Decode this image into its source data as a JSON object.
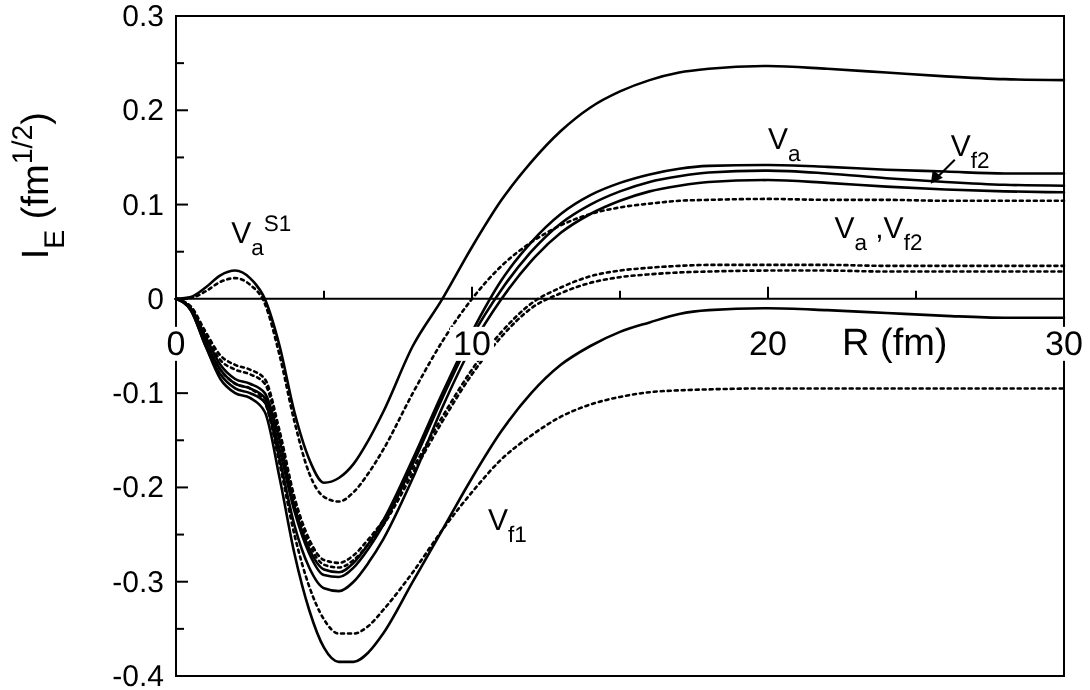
{
  "chart_data": {
    "type": "line",
    "xlabel": "R (fm)",
    "ylabel": "I$_{E}$ (fm$^{1/2}$)",
    "x": [
      0,
      0.5,
      1,
      1.5,
      2,
      2.5,
      3,
      3.5,
      4,
      4.5,
      5,
      5.5,
      6,
      6.5,
      7,
      8,
      9,
      10,
      11,
      12,
      13,
      14,
      15,
      16,
      17,
      18,
      20,
      22,
      24,
      26,
      28,
      30
    ],
    "series": [
      {
        "color": "#000000",
        "line_style": "solid",
        "values": [
          0,
          0.002,
          0.012,
          0.025,
          0.03,
          0.022,
          0,
          -0.05,
          -0.12,
          -0.17,
          -0.195,
          -0.19,
          -0.175,
          -0.15,
          -0.12,
          -0.05,
          0,
          0.055,
          0.105,
          0.145,
          0.178,
          0.203,
          0.22,
          0.232,
          0.24,
          0.244,
          0.247,
          0.244,
          0.24,
          0.236,
          0.233,
          0.232
        ]
      },
      {
        "color": "#000000",
        "line_style": "dotted",
        "values": [
          0,
          0.001,
          0.008,
          0.018,
          0.022,
          0.015,
          -0.005,
          -0.06,
          -0.13,
          -0.185,
          -0.21,
          -0.215,
          -0.205,
          -0.185,
          -0.16,
          -0.1,
          -0.045,
          0,
          0.035,
          0.06,
          0.078,
          0.09,
          0.097,
          0.101,
          0.104,
          0.105,
          0.106,
          0.105,
          0.105,
          0.104,
          0.104,
          0.104
        ]
      },
      {
        "color": "#000000",
        "line_style": "solid",
        "values": [
          0,
          -0.01,
          -0.04,
          -0.07,
          -0.085,
          -0.09,
          -0.1,
          -0.15,
          -0.22,
          -0.265,
          -0.287,
          -0.29,
          -0.28,
          -0.26,
          -0.235,
          -0.17,
          -0.1,
          -0.035,
          0.02,
          0.06,
          0.09,
          0.11,
          0.123,
          0.132,
          0.138,
          0.141,
          0.142,
          0.14,
          0.137,
          0.135,
          0.133,
          0.133
        ]
      },
      {
        "color": "#000000",
        "line_style": "solid",
        "values": [
          0,
          -0.01,
          -0.045,
          -0.075,
          -0.09,
          -0.095,
          -0.105,
          -0.16,
          -0.225,
          -0.27,
          -0.293,
          -0.295,
          -0.285,
          -0.265,
          -0.24,
          -0.175,
          -0.105,
          -0.04,
          0.01,
          0.05,
          0.08,
          0.1,
          0.114,
          0.124,
          0.13,
          0.134,
          0.136,
          0.133,
          0.128,
          0.124,
          0.121,
          0.12
        ]
      },
      {
        "color": "#000000",
        "line_style": "solid",
        "values": [
          0,
          -0.012,
          -0.05,
          -0.08,
          -0.095,
          -0.1,
          -0.11,
          -0.17,
          -0.24,
          -0.285,
          -0.307,
          -0.31,
          -0.3,
          -0.28,
          -0.255,
          -0.19,
          -0.115,
          -0.05,
          0,
          0.04,
          0.07,
          0.09,
          0.104,
          0.114,
          0.12,
          0.124,
          0.126,
          0.123,
          0.119,
          0.116,
          0.114,
          0.113
        ]
      },
      {
        "color": "#000000",
        "line_style": "dotted",
        "values": [
          0,
          -0.008,
          -0.035,
          -0.06,
          -0.07,
          -0.075,
          -0.085,
          -0.14,
          -0.21,
          -0.255,
          -0.277,
          -0.28,
          -0.272,
          -0.255,
          -0.235,
          -0.18,
          -0.125,
          -0.075,
          -0.035,
          -0.005,
          0.012,
          0.024,
          0.03,
          0.033,
          0.035,
          0.036,
          0.036,
          0.036,
          0.035,
          0.035,
          0.035,
          0.035
        ]
      },
      {
        "color": "#000000",
        "line_style": "dotted",
        "values": [
          0,
          -0.009,
          -0.038,
          -0.065,
          -0.075,
          -0.08,
          -0.09,
          -0.145,
          -0.215,
          -0.26,
          -0.282,
          -0.285,
          -0.277,
          -0.26,
          -0.24,
          -0.185,
          -0.13,
          -0.08,
          -0.04,
          -0.01,
          0.006,
          0.017,
          0.023,
          0.026,
          0.028,
          0.029,
          0.03,
          0.03,
          0.029,
          0.029,
          0.029,
          0.029
        ]
      },
      {
        "color": "#000000",
        "line_style": "solid",
        "values": [
          0,
          -0.012,
          -0.05,
          -0.085,
          -0.1,
          -0.105,
          -0.12,
          -0.19,
          -0.27,
          -0.33,
          -0.37,
          -0.385,
          -0.385,
          -0.375,
          -0.355,
          -0.3,
          -0.245,
          -0.19,
          -0.14,
          -0.1,
          -0.07,
          -0.05,
          -0.035,
          -0.025,
          -0.016,
          -0.012,
          -0.01,
          -0.012,
          -0.015,
          -0.018,
          -0.02,
          -0.02
        ]
      },
      {
        "color": "#000000",
        "line_style": "dotted",
        "values": [
          0,
          -0.01,
          -0.045,
          -0.075,
          -0.09,
          -0.095,
          -0.11,
          -0.175,
          -0.25,
          -0.305,
          -0.34,
          -0.355,
          -0.355,
          -0.347,
          -0.33,
          -0.29,
          -0.245,
          -0.205,
          -0.17,
          -0.145,
          -0.125,
          -0.112,
          -0.104,
          -0.099,
          -0.097,
          -0.096,
          -0.095,
          -0.095,
          -0.095,
          -0.095,
          -0.095,
          -0.095
        ]
      }
    ],
    "annotations": [
      {
        "text": "V$_{a}$$^{S1}$",
        "x": 2,
        "y": 0.03
      },
      {
        "text": "V$_{a}$",
        "x": 20,
        "y": 0.142
      },
      {
        "text": "V$_{f2}$",
        "x": 25.5,
        "y": 0.122
      },
      {
        "text": "V$_{a}$ ,V$_{f2}$",
        "x": 24,
        "y": 0.035
      },
      {
        "text": "V$_{f1}$",
        "x": 10,
        "y": -0.19
      }
    ],
    "xlim": [
      0,
      30
    ],
    "ylim": [
      -0.4,
      0.3
    ],
    "xticks": [
      0,
      {
        "value": 5,
        "label": null
      },
      10,
      {
        "value": 15,
        "label": null
      },
      20,
      {
        "value": 25,
        "label": null
      },
      30
    ],
    "yticks": [
      -0.4,
      {
        "value": -0.35,
        "label": null
      },
      -0.3,
      {
        "value": -0.25,
        "label": null
      },
      -0.2,
      {
        "value": -0.15,
        "label": null
      },
      -0.1,
      {
        "value": -0.05,
        "label": null
      },
      0,
      {
        "value": 0.05,
        "label": null
      },
      0.1,
      {
        "value": 0.15,
        "label": null
      },
      0.2,
      {
        "value": 0.25,
        "label": null
      },
      0.3
    ],
    "grid": false,
    "marker": "none"
  }
}
